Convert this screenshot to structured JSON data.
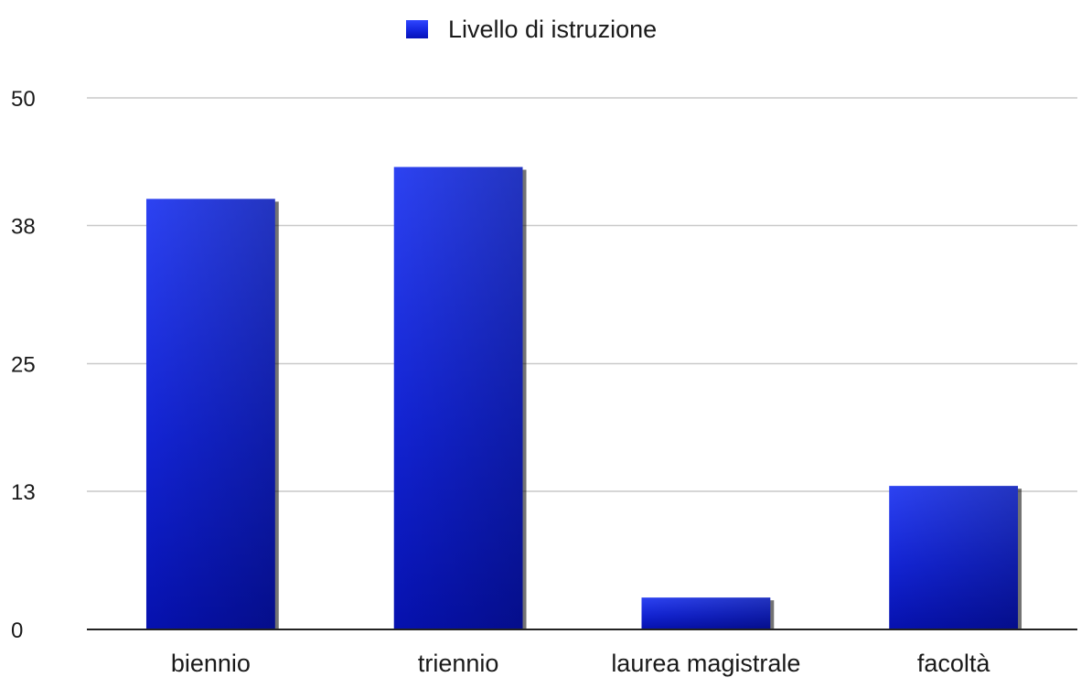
{
  "chart_data": {
    "type": "bar",
    "title": "",
    "xlabel": "",
    "ylabel": "",
    "categories": [
      "biennio",
      "triennio",
      "laurea magistrale",
      "facoltà"
    ],
    "series": [
      {
        "name": "Livello di istruzione",
        "values": [
          40.5,
          43.5,
          3,
          13.5
        ],
        "color": "#0d1fd6"
      }
    ],
    "ylim": [
      0,
      50
    ],
    "yticks": [
      0,
      13,
      25,
      38,
      50
    ],
    "grid": true,
    "legend_position": "top-center"
  }
}
